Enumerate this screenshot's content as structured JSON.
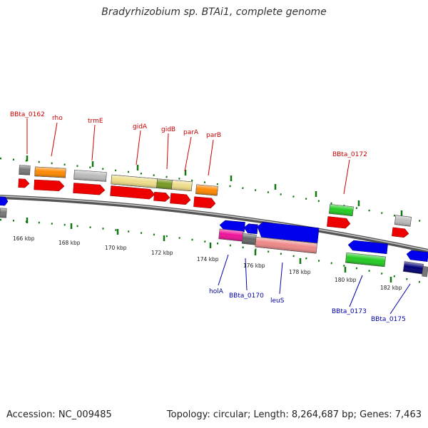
{
  "title": "Bradyrhizobium sp. BTAi1, complete genome",
  "footer": {
    "accession": "Accession: NC_009485",
    "topology": "Topology: circular; Length: 8,264,687 bp; Genes: 7,463"
  },
  "scale_labels": [
    "166 kbp",
    "168 kbp",
    "170 kbp",
    "172 kbp",
    "174 kbp",
    "176 kbp",
    "178 kbp",
    "180 kbp",
    "182 kbp"
  ],
  "gene_labels_top": [
    "BBta_0162",
    "rho",
    "trmE",
    "gidA",
    "gidB",
    "parA",
    "parB",
    "BBta_0172"
  ],
  "gene_labels_bottom": [
    "holA",
    "BBta_0170",
    "leuS",
    "BBta_0173",
    "BBta_0175"
  ],
  "colors": {
    "forward_label": "#cc0000",
    "reverse_label": "#0000aa",
    "red": "#ee0000",
    "blue": "#0000ee",
    "green": "#22cc22",
    "gray": "#999999",
    "orange": "#ff8800",
    "khaki": "#eedd88",
    "olive": "#779922",
    "pink": "#ee8888",
    "magenta": "#ee1199",
    "navy": "#000077",
    "tick_green": "#117711"
  }
}
